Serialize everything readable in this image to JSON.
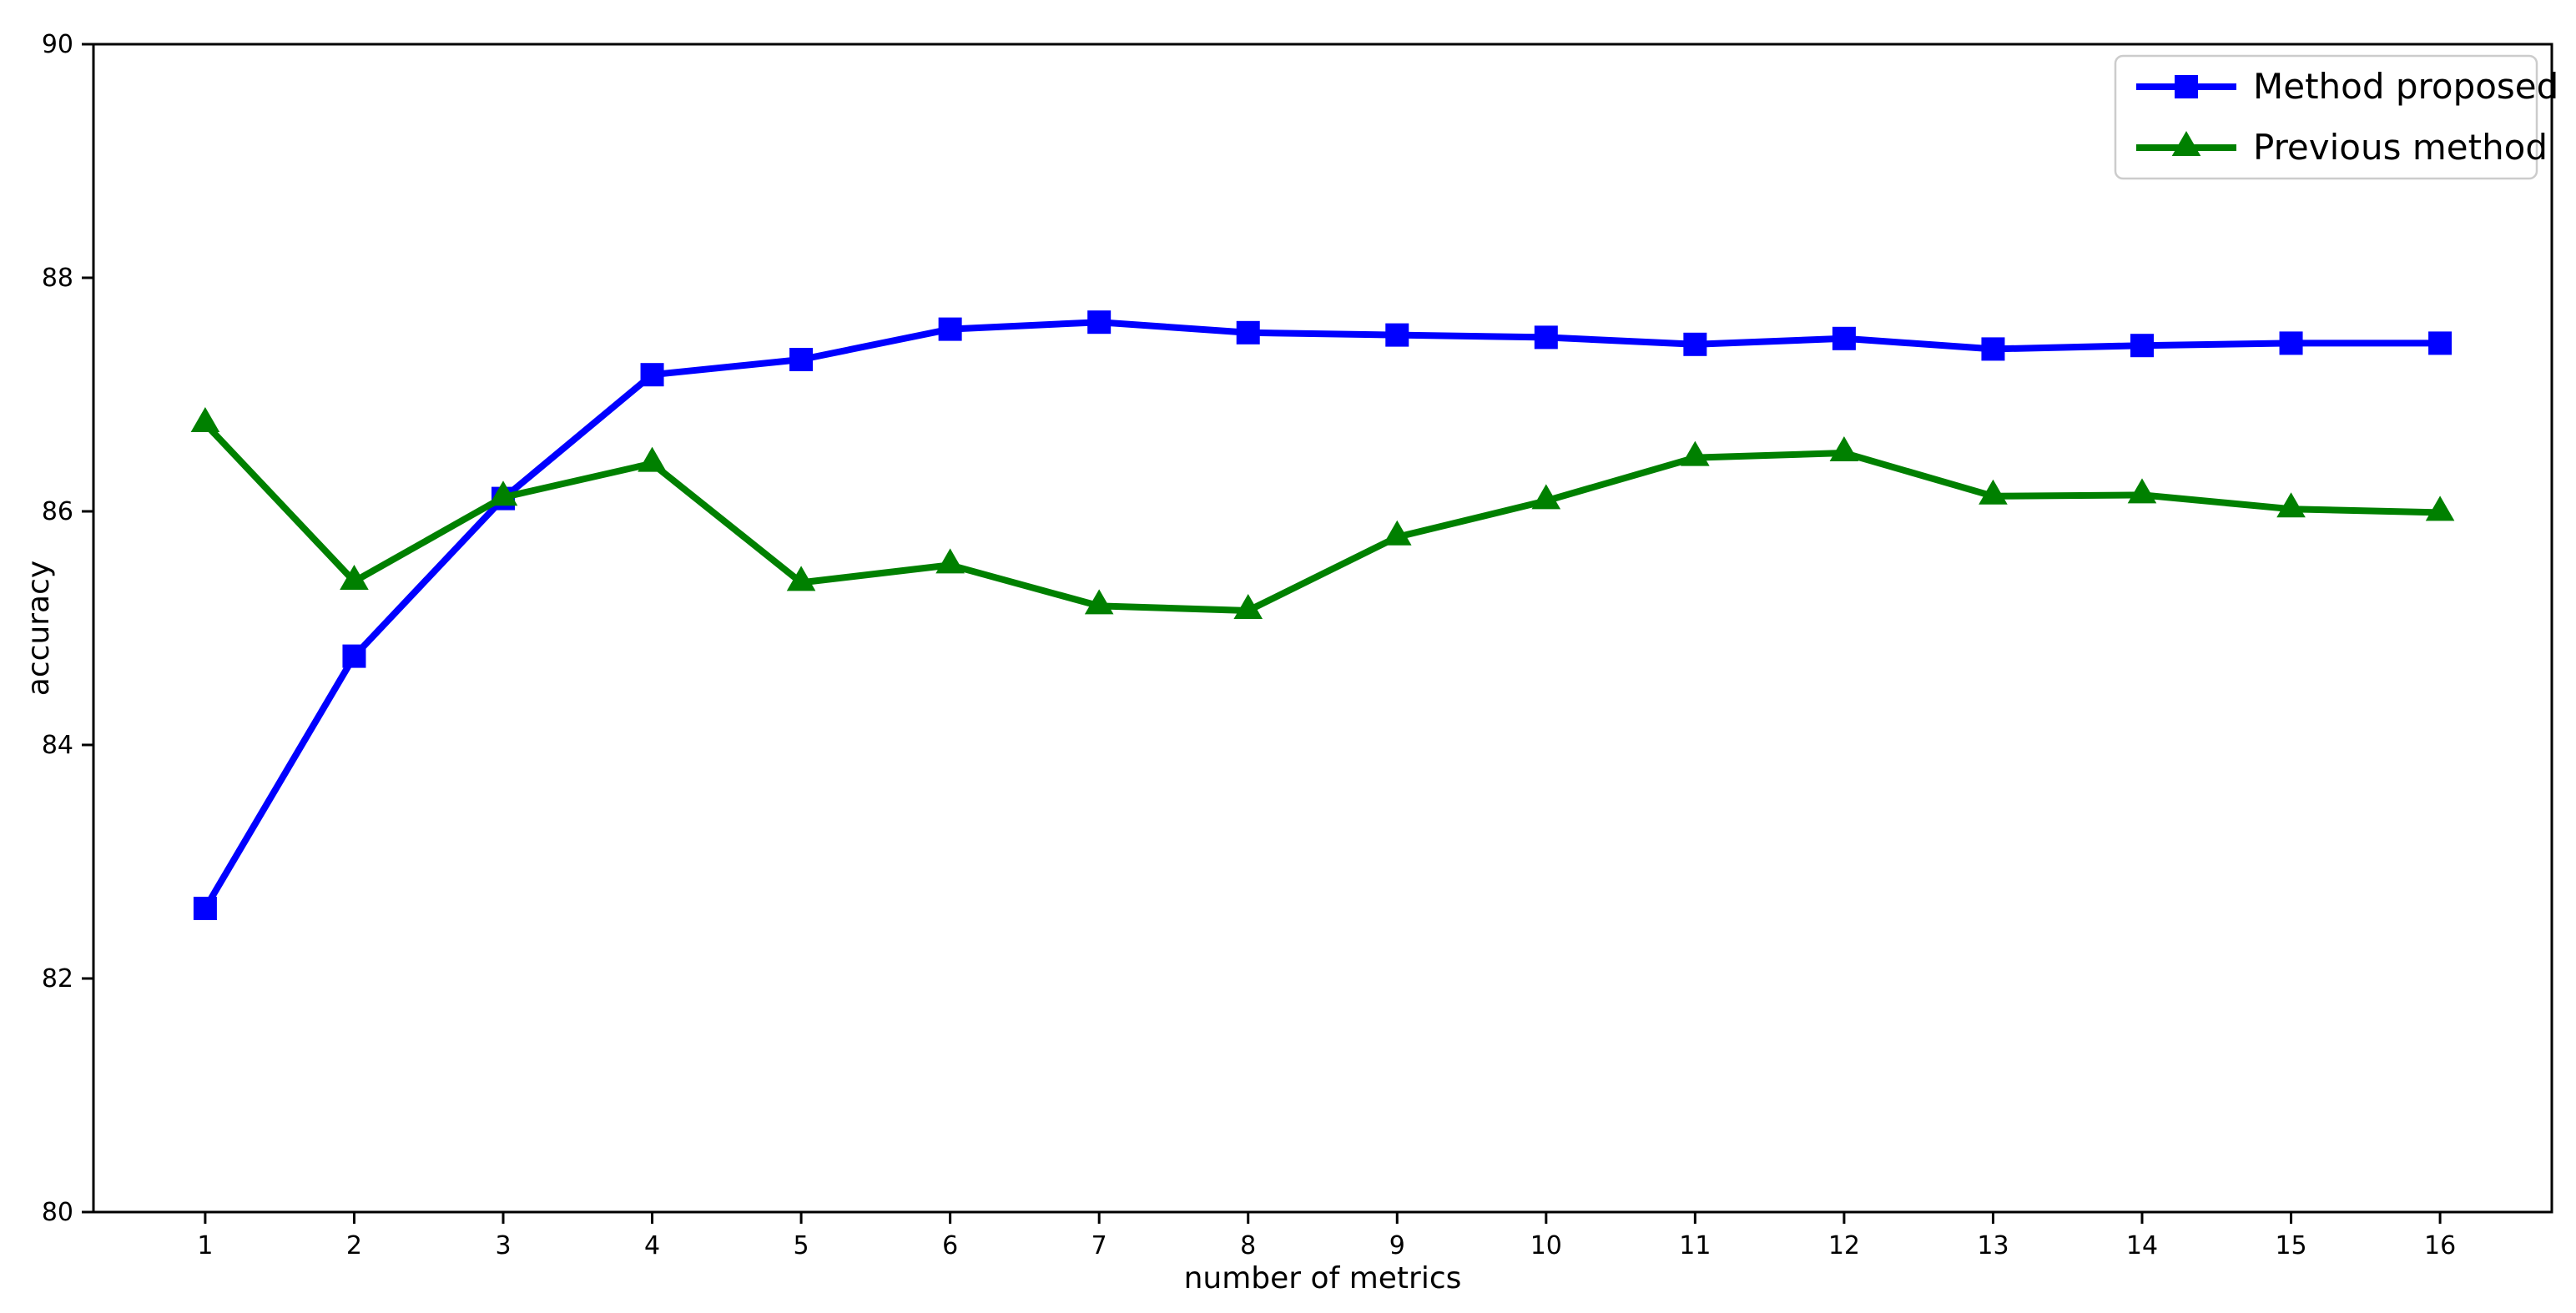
{
  "figure": {
    "background": "#ffffff",
    "spine_color": "#000000",
    "legend_border_color": "#cccccc"
  },
  "chart_data": {
    "type": "line",
    "title": "",
    "xlabel": "number of metrics",
    "ylabel": "accuracy",
    "x": [
      1,
      2,
      3,
      4,
      5,
      6,
      7,
      8,
      9,
      10,
      11,
      12,
      13,
      14,
      15,
      16
    ],
    "xticks": [
      1,
      2,
      3,
      4,
      5,
      6,
      7,
      8,
      9,
      10,
      11,
      12,
      13,
      14,
      15,
      16
    ],
    "yticks": [
      80,
      82,
      84,
      86,
      88,
      90
    ],
    "xlim": [
      0.25,
      16.75
    ],
    "ylim": [
      80,
      90
    ],
    "grid": false,
    "legend_position": "upper-right",
    "series": [
      {
        "name": "Method proposed",
        "color": "#0000ff",
        "marker": "square",
        "values": [
          82.6,
          84.76,
          86.11,
          87.17,
          87.3,
          87.56,
          87.62,
          87.53,
          87.51,
          87.49,
          87.43,
          87.48,
          87.39,
          87.42,
          87.44,
          87.44
        ]
      },
      {
        "name": "Previous method",
        "color": "#008000",
        "marker": "triangle-up",
        "values": [
          86.75,
          85.4,
          86.12,
          86.41,
          85.39,
          85.54,
          85.19,
          85.15,
          85.78,
          86.09,
          86.46,
          86.5,
          86.13,
          86.14,
          86.02,
          85.99
        ]
      }
    ]
  }
}
